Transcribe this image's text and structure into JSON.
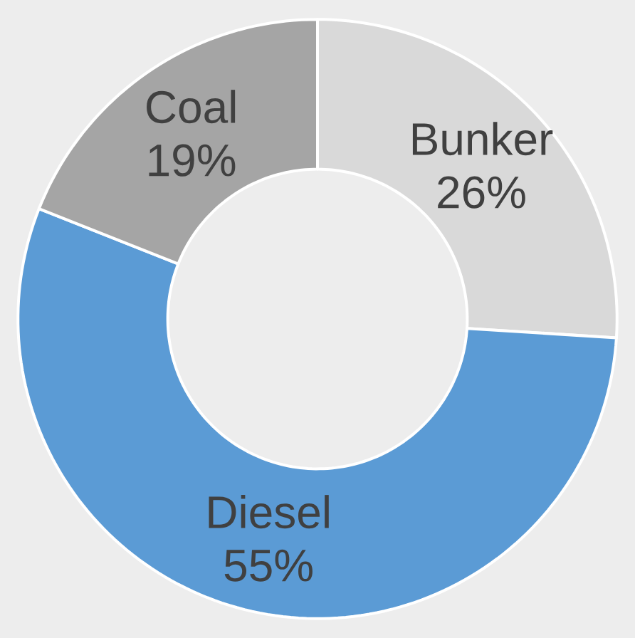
{
  "chart_data": {
    "type": "donut",
    "categories": [
      "Bunker",
      "Diesel",
      "Coal"
    ],
    "values": [
      26,
      55,
      19
    ],
    "value_labels": [
      "26%",
      "55%",
      "19%"
    ],
    "colors": [
      "#d9d9d9",
      "#5b9bd5",
      "#a5a5a5"
    ]
  }
}
